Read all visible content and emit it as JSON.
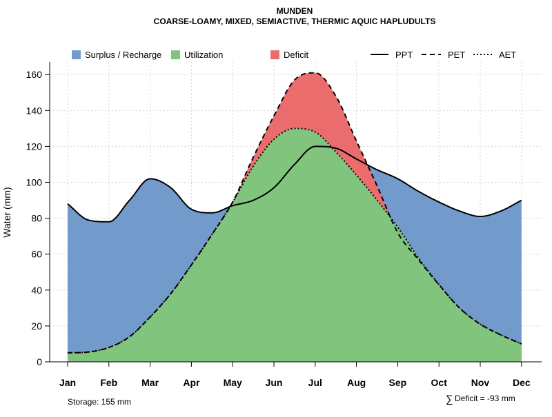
{
  "chart_data": {
    "type": "area",
    "title": "MUNDEN",
    "subtitle": "COARSE-LOAMY, MIXED, SEMIACTIVE, THERMIC AQUIC HAPLUDULTS",
    "xlabel": "",
    "ylabel": "Water (mm)",
    "ylim": [
      0,
      167
    ],
    "y_ticks": [
      0,
      20,
      40,
      60,
      80,
      100,
      120,
      140,
      160
    ],
    "categories": [
      "Jan",
      "Feb",
      "Mar",
      "Apr",
      "May",
      "Jun",
      "Jul",
      "Aug",
      "Sep",
      "Oct",
      "Nov",
      "Dec"
    ],
    "x": [
      1,
      1.5,
      2,
      2.5,
      3,
      3.5,
      4,
      4.5,
      5,
      5.5,
      6,
      6.5,
      7,
      7.5,
      8,
      8.5,
      9,
      9.5,
      10,
      10.5,
      11,
      11.5,
      12
    ],
    "series": [
      {
        "name": "PPT",
        "linestyle": "solid",
        "values": [
          88,
          79,
          78,
          90,
          102,
          97,
          85,
          83,
          87,
          90,
          97,
          110,
          120,
          119,
          113,
          107,
          102,
          95,
          89,
          84,
          81,
          84,
          90
        ]
      },
      {
        "name": "PET",
        "linestyle": "dashed",
        "values": [
          5,
          5.5,
          8,
          14,
          25,
          38,
          54,
          71,
          89,
          114,
          137,
          157,
          161,
          148,
          123,
          98,
          72,
          57,
          43,
          30,
          21,
          15,
          10
        ]
      },
      {
        "name": "AET",
        "linestyle": "dotted",
        "values": [
          5,
          5.5,
          8,
          14,
          25,
          38,
          54,
          71,
          89,
          109,
          124,
          130,
          128,
          117,
          104,
          90,
          75,
          58,
          43,
          30,
          21,
          15,
          10
        ]
      }
    ],
    "legend": [
      {
        "label": "Surplus / Recharge",
        "color": "#729ACA"
      },
      {
        "label": "Utilization",
        "color": "#80C47D"
      },
      {
        "label": "Deficit",
        "color": "#EB6C6C"
      },
      {
        "label": "PPT",
        "linestyle": "solid"
      },
      {
        "label": "PET",
        "linestyle": "dashed"
      },
      {
        "label": "AET",
        "linestyle": "dotted"
      }
    ],
    "legend_position": "top",
    "grid": true,
    "annotations": {
      "storage": "Storage: 155 mm",
      "deficit_symbol": "∑",
      "deficit": "Deficit = -93 mm"
    },
    "colors": {
      "surplus": "#729ACA",
      "utilization": "#80C47D",
      "deficit": "#EB6C6C",
      "line": "#000000",
      "grid": "#D3D3D3"
    }
  }
}
